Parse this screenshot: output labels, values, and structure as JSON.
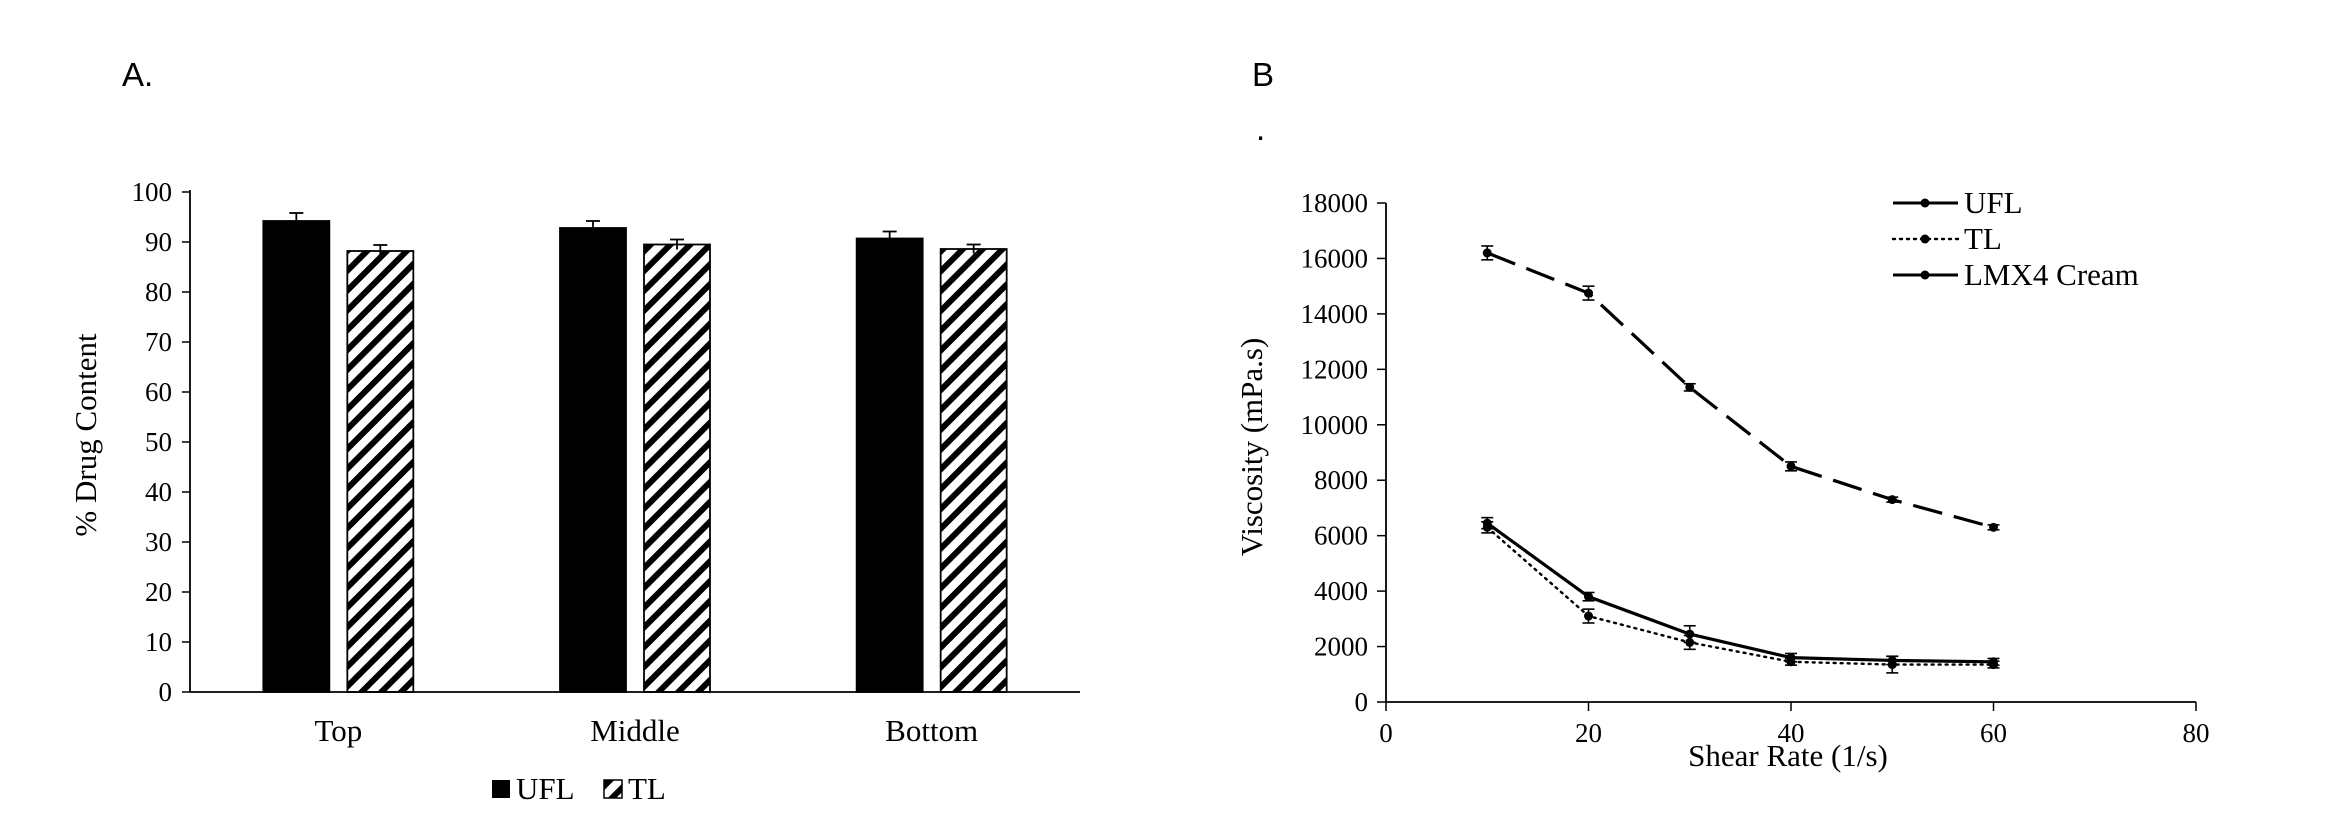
{
  "panels": {
    "a_label": "A.",
    "b_label": "B",
    "b_dot": "."
  },
  "chart_data": [
    {
      "type": "bar",
      "title": "",
      "categories": [
        "Top",
        "Middle",
        "Bottom"
      ],
      "series": [
        {
          "name": "UFL",
          "values": [
            94.2,
            92.8,
            90.7
          ],
          "errors": [
            1.6,
            1.4,
            1.4
          ],
          "pattern": "solid",
          "color": "#000000"
        },
        {
          "name": "TL",
          "values": [
            88.2,
            89.5,
            88.6
          ],
          "errors": [
            1.2,
            1.0,
            0.9
          ],
          "pattern": "diagonal-hatch",
          "color": "#000000"
        }
      ],
      "xlabel": "",
      "ylabel": "%  Drug Content",
      "ylim": [
        0,
        100
      ],
      "yticks": [
        "0",
        "10",
        "20",
        "30",
        "40",
        "50",
        "60",
        "70",
        "80",
        "90",
        "100"
      ],
      "grid": false,
      "legend_position": "bottom-center"
    },
    {
      "type": "line",
      "title": "",
      "xlabel": "Shear Rate (1/s)",
      "ylabel": "Viscosity (mPa.s)",
      "xlim": [
        0,
        80
      ],
      "ylim": [
        0,
        18000
      ],
      "xticks": [
        "0",
        "20",
        "40",
        "60",
        "80"
      ],
      "yticks": [
        "0",
        "2000",
        "4000",
        "6000",
        "8000",
        "10000",
        "12000",
        "14000",
        "16000",
        "18000"
      ],
      "x": [
        10,
        20,
        30,
        40,
        50,
        60
      ],
      "series": [
        {
          "name": "UFL",
          "values": [
            6450,
            3800,
            2450,
            1600,
            1500,
            1450
          ],
          "errors": [
            200,
            150,
            300,
            150,
            150,
            120
          ],
          "dash": "solid",
          "color": "#000000"
        },
        {
          "name": "TL",
          "values": [
            6300,
            3100,
            2150,
            1450,
            1350,
            1350
          ],
          "errors": [
            200,
            250,
            250,
            120,
            300,
            120
          ],
          "dash": "dotted",
          "color": "#000000"
        },
        {
          "name": "LMX4 Cream",
          "values": [
            16200,
            14750,
            11350,
            8500,
            7300,
            6300
          ],
          "errors": [
            250,
            250,
            130,
            160,
            90,
            90
          ],
          "dash": "long-dash",
          "color": "#000000"
        }
      ],
      "grid": false,
      "legend_position": "top-right"
    }
  ]
}
